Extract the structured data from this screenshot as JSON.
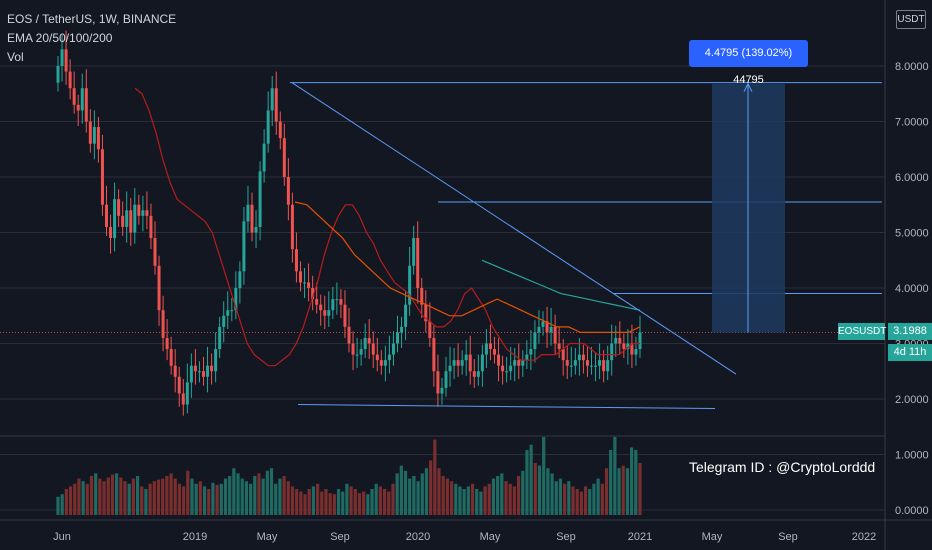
{
  "legend": {
    "symbol": "EOS / TetherUS, 1W, BINANCE",
    "ema": "EMA 20/50/100/200",
    "vol": "Vol"
  },
  "axis": {
    "unit": "USDT",
    "y_ticks": [
      "8.0000",
      "7.0000",
      "6.0000",
      "5.0000",
      "4.0000",
      "3.0000",
      "2.0000",
      "1.0000",
      "0.0000"
    ],
    "y_values": [
      8,
      7,
      6,
      5,
      4,
      3,
      2,
      1,
      0
    ],
    "x_ticks": [
      "Jun",
      "2019",
      "May",
      "Sep",
      "2020",
      "May",
      "Sep",
      "2021",
      "May",
      "Sep",
      "2022"
    ]
  },
  "price": {
    "symbol_tag": "EOSUSDT",
    "last": "3.1988",
    "countdown": "4d 11h"
  },
  "measure": {
    "label": "4.4795 (139.02%) 44795"
  },
  "annotation": {
    "telegram": "Telegram ID : @CryptoLorddd"
  },
  "colors": {
    "background": "#131722",
    "up": "#26a69a",
    "down": "#ef5350",
    "ema20": "#b71c1c",
    "ema50": "#e65100",
    "ema100": "#26a69a",
    "line": "#5b9cf6",
    "measure_fill": "#1e3a5f",
    "grid": "#2a2e39",
    "text": "#b2b5be"
  },
  "chart_data": {
    "type": "candlestick",
    "title": "EOS / TetherUS, 1W, BINANCE",
    "ylabel": "USDT",
    "ylim": [
      0,
      8.5
    ],
    "key_levels": {
      "resistance_top": 7.7,
      "resistance_mid": 5.55,
      "resistance_low": 3.9,
      "support": 1.9,
      "last_price": 3.1988,
      "target": 7.68
    },
    "close_series": [
      8.0,
      8.3,
      7.9,
      7.6,
      7.3,
      7.2,
      7.6,
      7.0,
      6.6,
      6.9,
      6.5,
      5.5,
      5.1,
      4.9,
      5.6,
      5.3,
      5.1,
      5.4,
      5.0,
      5.5,
      5.3,
      5.4,
      5.3,
      4.9,
      4.4,
      3.6,
      3.1,
      2.9,
      2.6,
      2.4,
      2.1,
      1.9,
      2.3,
      2.6,
      2.5,
      2.5,
      2.4,
      2.6,
      2.5,
      2.9,
      3.3,
      3.5,
      3.6,
      3.6,
      4.0,
      4.3,
      5.2,
      5.5,
      5.0,
      5.1,
      6.1,
      6.6,
      7.2,
      7.6,
      7.0,
      6.7,
      6.0,
      5.5,
      4.7,
      4.3,
      4.1,
      4.1,
      4.0,
      3.8,
      3.7,
      3.6,
      3.5,
      3.6,
      3.8,
      3.8,
      3.7,
      3.3,
      3.0,
      2.8,
      2.8,
      2.9,
      3.1,
      3.0,
      2.8,
      2.7,
      2.6,
      2.7,
      2.8,
      3.0,
      3.2,
      3.3,
      3.7,
      4.4,
      4.9,
      4.0,
      3.7,
      3.4,
      3.1,
      2.5,
      2.1,
      2.2,
      2.5,
      2.6,
      2.7,
      2.6,
      2.7,
      2.8,
      2.5,
      2.4,
      2.5,
      2.8,
      3.0,
      2.9,
      2.8,
      2.6,
      2.5,
      2.5,
      2.6,
      2.7,
      2.6,
      2.7,
      2.8,
      2.9,
      3.2,
      3.3,
      3.4,
      3.2,
      3.3,
      3.0,
      2.9,
      2.7,
      2.6,
      2.6,
      2.7,
      2.8,
      2.7,
      2.6,
      2.6,
      2.6,
      2.7,
      2.5,
      2.7,
      3.0,
      3.1,
      3.0,
      2.9,
      3.0,
      2.8,
      2.9,
      3.2
    ],
    "volume": [
      0.35,
      0.4,
      0.5,
      0.55,
      0.6,
      0.7,
      0.65,
      0.6,
      0.75,
      0.8,
      0.7,
      0.65,
      0.72,
      0.78,
      0.8,
      0.72,
      0.65,
      0.6,
      0.7,
      0.75,
      0.55,
      0.5,
      0.6,
      0.65,
      0.68,
      0.7,
      0.75,
      0.8,
      0.7,
      0.6,
      0.55,
      0.85,
      0.7,
      0.6,
      0.65,
      0.55,
      0.5,
      0.62,
      0.58,
      0.6,
      0.7,
      0.75,
      0.9,
      0.8,
      0.7,
      0.65,
      0.6,
      0.75,
      0.8,
      0.7,
      0.85,
      0.9,
      0.6,
      0.7,
      0.75,
      0.65,
      0.55,
      0.5,
      0.45,
      0.4,
      0.5,
      0.55,
      0.6,
      0.45,
      0.5,
      0.42,
      0.4,
      0.5,
      0.45,
      0.6,
      0.55,
      0.5,
      0.42,
      0.45,
      0.4,
      0.5,
      0.6,
      0.55,
      0.5,
      0.45,
      0.6,
      0.8,
      0.95,
      0.85,
      0.7,
      0.75,
      0.65,
      0.8,
      0.9,
      1.05,
      1.45,
      0.9,
      0.75,
      0.7,
      0.65,
      0.6,
      0.55,
      0.5,
      0.55,
      0.6,
      0.5,
      0.45,
      0.55,
      0.6,
      0.7,
      0.75,
      0.8,
      0.65,
      0.6,
      0.55,
      0.75,
      0.85,
      1.25,
      1.35,
      1.0,
      0.95,
      1.5,
      0.9,
      0.8,
      0.65,
      0.7,
      0.6,
      0.65,
      0.55,
      0.5,
      0.45,
      0.55,
      0.5,
      0.6,
      0.7,
      0.6,
      0.9,
      1.25,
      1.5,
      0.9,
      0.95,
      0.9,
      1.3,
      1.25,
      1.0
    ],
    "ema20_series": [
      7.6,
      7.5,
      7.2,
      6.8,
      6.3,
      5.9,
      5.6,
      5.5,
      5.4,
      5.3,
      5.2,
      5.0,
      4.6,
      4.2,
      3.8,
      3.4,
      3.0,
      2.8,
      2.7,
      2.6,
      2.6,
      2.7,
      2.8,
      3.0,
      3.3,
      3.7,
      4.1,
      4.6,
      5.0,
      5.3,
      5.5,
      5.5,
      5.3,
      5.0,
      4.8,
      4.5,
      4.3,
      4.1,
      4.0,
      3.9,
      3.7,
      3.5,
      3.4,
      3.3,
      3.3,
      3.4,
      3.6,
      3.9,
      4.0,
      3.8,
      3.6,
      3.3,
      3.1,
      2.9,
      2.8,
      2.7,
      2.7,
      2.7,
      2.8,
      2.8,
      2.8,
      2.9,
      3.0,
      3.0,
      3.0,
      2.9,
      2.8,
      2.8,
      2.8,
      2.8,
      2.9,
      3.0,
      3.0
    ],
    "ema50_series": [
      5.55,
      5.5,
      5.3,
      5.1,
      4.9,
      4.6,
      4.4,
      4.2,
      4.0,
      3.9,
      3.8,
      3.7,
      3.6,
      3.5,
      3.5,
      3.6,
      3.7,
      3.8,
      3.7,
      3.6,
      3.5,
      3.4,
      3.3,
      3.3,
      3.2,
      3.2,
      3.2,
      3.2,
      3.2,
      3.3
    ],
    "ema100_series": [
      4.5,
      4.4,
      4.3,
      4.2,
      4.1,
      4.0,
      3.9,
      3.85,
      3.8,
      3.75,
      3.7,
      3.65,
      3.6
    ]
  }
}
